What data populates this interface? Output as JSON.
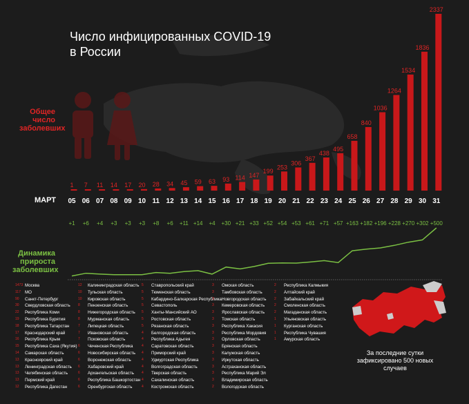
{
  "title_line1": "Число инфицированных COVID-19",
  "title_line2": "в России",
  "total_label": [
    "Общее",
    "число",
    "заболевших"
  ],
  "growth_label": [
    "Динамика",
    "прироста",
    "заболевших"
  ],
  "month_label": "МАРТ",
  "summary_text": [
    "За последние",
    "сутки",
    "зафиксировано 500 новых",
    "случаев"
  ],
  "colors": {
    "bar": "#c8181a",
    "line": "#7bc043",
    "text_red": "#e02525",
    "map_red": "#d0181a"
  },
  "chart_data": {
    "type": "bar",
    "categories": [
      "05",
      "06",
      "07",
      "08",
      "09",
      "10",
      "11",
      "12",
      "13",
      "14",
      "15",
      "16",
      "17",
      "18",
      "19",
      "20",
      "21",
      "22",
      "23",
      "24",
      "25",
      "26",
      "27",
      "28",
      "29",
      "30",
      "31"
    ],
    "values": [
      1,
      7,
      11,
      14,
      17,
      20,
      28,
      34,
      45,
      59,
      63,
      93,
      114,
      147,
      199,
      253,
      306,
      367,
      438,
      495,
      658,
      840,
      1036,
      1264,
      1534,
      1836,
      2337
    ],
    "increments": [
      "+1",
      "+6",
      "+4",
      "+3",
      "+3",
      "+3",
      "+8",
      "+6",
      "+11",
      "+14",
      "+4",
      "+30",
      "+21",
      "+33",
      "+52",
      "+54",
      "+53",
      "+61",
      "+71",
      "+57",
      "+163",
      "+182",
      "+196",
      "+228",
      "+270",
      "+302",
      "+500"
    ],
    "increment_values": [
      1,
      6,
      4,
      3,
      3,
      3,
      8,
      6,
      11,
      14,
      4,
      30,
      21,
      33,
      52,
      54,
      53,
      61,
      71,
      57,
      163,
      182,
      196,
      228,
      270,
      302,
      500
    ],
    "title": "Число инфицированных COVID-19 в России",
    "xlabel": "МАРТ"
  },
  "regions": {
    "col1": [
      [
        "1473",
        "Москва"
      ],
      [
        "117",
        "МО"
      ],
      [
        "90",
        "Санкт-Петербург"
      ],
      [
        "30",
        "Свердловская область"
      ],
      [
        "22",
        "Республика Коми"
      ],
      [
        "19",
        "Республика Бурятия"
      ],
      [
        "18",
        "Республика Татарстан"
      ],
      [
        "17",
        "Краснодарский край"
      ],
      [
        "16",
        "Республика Крым"
      ],
      [
        "15",
        "Республика Саха (Якутия)"
      ],
      [
        "14",
        "Самарская область"
      ],
      [
        "13",
        "Красноярский край"
      ],
      [
        "13",
        "Ленинградская область"
      ],
      [
        "13",
        "Челябинская область"
      ],
      [
        "13",
        "Пермский край"
      ],
      [
        "12",
        "Республика Дагестан"
      ]
    ],
    "col2": [
      [
        "12",
        "Калининградская область"
      ],
      [
        "10",
        "Тульская область"
      ],
      [
        "10",
        "Кировская область"
      ],
      [
        "8",
        "Пензенская область"
      ],
      [
        "8",
        "Нижегородская область"
      ],
      [
        "8",
        "Мурманская область"
      ],
      [
        "7",
        "Липецкая область"
      ],
      [
        "7",
        "Ивановская область"
      ],
      [
        "7",
        "Псковская область"
      ],
      [
        "6",
        "Чеченская Республика"
      ],
      [
        "6",
        "Новосибирская область"
      ],
      [
        "6",
        "Воронежская область"
      ],
      [
        "6",
        "Хабаровский край"
      ],
      [
        "6",
        "Архангельская область"
      ],
      [
        "6",
        "Республика Башкортостан"
      ],
      [
        "6",
        "Оренбургская область"
      ]
    ],
    "col3": [
      [
        "5",
        "Ставропольский край"
      ],
      [
        "5",
        "Тюменская область"
      ],
      [
        "5",
        "Кабардино-Балкарская Республика"
      ],
      [
        "5",
        "Севастополь"
      ],
      [
        "5",
        "Ханты-Мансийский АО"
      ],
      [
        "5",
        "Ростовская область"
      ],
      [
        "5",
        "Рязанская область"
      ],
      [
        "4",
        "Белгородская область"
      ],
      [
        "4",
        "Республика Адыгея"
      ],
      [
        "4",
        "Саратовская область"
      ],
      [
        "4",
        "Приморский край"
      ],
      [
        "4",
        "Удмуртская Республика"
      ],
      [
        "4",
        "Волгоградская область"
      ],
      [
        "4",
        "Тверская область"
      ],
      [
        "4",
        "Сахалинская область"
      ],
      [
        "4",
        "Костромская область"
      ]
    ],
    "col4": [
      [
        "3",
        "Омская область"
      ],
      [
        "3",
        "Тамбовская область"
      ],
      [
        "3",
        "Новгородская область"
      ],
      [
        "3",
        "Кемеровская область"
      ],
      [
        "3",
        "Ярославская область"
      ],
      [
        "3",
        "Томская область"
      ],
      [
        "3",
        "Республика Хакасия"
      ],
      [
        "3",
        "Республика Мордовия"
      ],
      [
        "3",
        "Орловская область"
      ],
      [
        "3",
        "Брянская область"
      ],
      [
        "3",
        "Калужская область"
      ],
      [
        "3",
        "Иркутская область"
      ],
      [
        "3",
        "Астраханская область"
      ],
      [
        "3",
        "Республика Марий Эл"
      ],
      [
        "3",
        "Владимирская область"
      ],
      [
        "2",
        "Вологодская область"
      ]
    ],
    "col5": [
      [
        "2",
        "Республика Калмыкия"
      ],
      [
        "2",
        "Алтайский край"
      ],
      [
        "2",
        "Забайкальский край"
      ],
      [
        "2",
        "Смоленская область"
      ],
      [
        "2",
        "Магаданская область"
      ],
      [
        "1",
        "Ульяновская область"
      ],
      [
        "1",
        "Курганская область"
      ],
      [
        "1",
        "Республика Чувашия"
      ],
      [
        "1",
        "Амурская область"
      ]
    ]
  }
}
